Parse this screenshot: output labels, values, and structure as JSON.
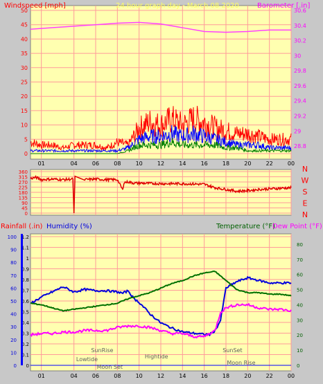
{
  "title": "24 hour graph day - March 08 2020",
  "colors": {
    "background": "#c8c8c8",
    "plot_bg": "#ffffb0",
    "grid": "#ff9a9a",
    "wind": "#ff0000",
    "gust_mid": "#0000ff",
    "wind_low": "#008000",
    "barometer": "#ff40ff",
    "direction": "#e00000",
    "humidity": "#0000dd",
    "temperature": "#007000",
    "dewpoint": "#ff00ff",
    "rain": "#0000ff"
  },
  "x_ticks": [
    "01",
    "04",
    "06",
    "08",
    "10",
    "12",
    "14",
    "16",
    "18",
    "20",
    "22",
    "00"
  ],
  "chart_data": [
    {
      "type": "line",
      "title": "24 hour graph day - March 08 2020",
      "y_left_label": "Windspeed [mph]",
      "y_right_label": "Barometer [.in]",
      "y_left_ticks": [
        "50",
        "45",
        "40",
        "35",
        "30",
        "25",
        "20",
        "15",
        "10",
        "5",
        "0"
      ],
      "y_right_ticks": [
        "30.6",
        "30.4",
        "30.2",
        "30",
        "29.8",
        "29.6",
        "29.4",
        "29.2",
        "29",
        "28.8"
      ],
      "ylim_left": [
        0,
        50
      ],
      "ylim_right": [
        28.7,
        30.6
      ],
      "series": [
        {
          "key": "wind_gust",
          "x": [
            0,
            1,
            2,
            3,
            4,
            5,
            6,
            7,
            8,
            9,
            10,
            11,
            12,
            13,
            14,
            15,
            16,
            17,
            18,
            19,
            20,
            21,
            22,
            23,
            24
          ],
          "y": [
            4,
            3,
            3,
            2,
            3,
            3,
            3,
            2,
            4,
            3,
            9,
            11,
            10,
            12,
            10,
            12,
            11,
            9,
            8,
            7,
            7,
            6,
            5,
            5,
            5
          ]
        },
        {
          "key": "wind_avg",
          "x": [
            0,
            1,
            2,
            3,
            4,
            5,
            6,
            7,
            8,
            9,
            10,
            11,
            12,
            13,
            14,
            15,
            16,
            17,
            18,
            19,
            20,
            21,
            22,
            23,
            24
          ],
          "y": [
            1,
            1,
            1,
            1,
            1,
            1,
            1,
            1,
            1,
            2,
            5,
            6,
            6,
            7,
            6,
            7,
            6,
            5,
            4,
            3,
            3,
            3,
            2,
            2,
            2
          ]
        },
        {
          "key": "wind_low",
          "x": [
            0,
            1,
            2,
            3,
            4,
            5,
            6,
            7,
            8,
            9,
            10,
            11,
            12,
            13,
            14,
            15,
            16,
            17,
            18,
            19,
            20,
            21,
            22,
            23,
            24
          ],
          "y": [
            0,
            0,
            0,
            0,
            0,
            0,
            0,
            0,
            0,
            1,
            3,
            3,
            3,
            4,
            3,
            3,
            3,
            3,
            2,
            2,
            1,
            1,
            1,
            1,
            1
          ]
        },
        {
          "key": "barometer",
          "x": [
            0,
            2,
            4,
            6,
            8,
            10,
            12,
            14,
            16,
            18,
            20,
            22,
            24
          ],
          "y": [
            30.35,
            30.37,
            30.39,
            30.41,
            30.43,
            30.44,
            30.42,
            30.37,
            30.32,
            30.31,
            30.32,
            30.34,
            30.34
          ]
        }
      ]
    },
    {
      "type": "line",
      "y_ticks": [
        "360",
        "315",
        "270",
        "225",
        "180",
        "135",
        "90",
        "45",
        "0"
      ],
      "compass": [
        "N",
        "W",
        "S",
        "E",
        "N"
      ],
      "ylim": [
        0,
        360
      ],
      "series": [
        {
          "key": "direction",
          "x": [
            0,
            0.5,
            1,
            2,
            3,
            3.9,
            4,
            4.1,
            5,
            6,
            7,
            8,
            8.5,
            8.6,
            9,
            9.5,
            10,
            12,
            14,
            16,
            17,
            18,
            19,
            20,
            21,
            22,
            23,
            24
          ],
          "y": [
            300,
            310,
            290,
            295,
            290,
            295,
            0,
            320,
            290,
            295,
            290,
            290,
            200,
            265,
            270,
            260,
            260,
            255,
            255,
            250,
            220,
            205,
            190,
            195,
            205,
            210,
            215,
            220
          ]
        }
      ]
    },
    {
      "type": "line",
      "y_left_label_1": "Rainfall (.in)",
      "y_left_label_2": "Humidity (%)",
      "y_right_label_1": "Temperature (°F)",
      "y_right_label_2": "Dew Point (°F)",
      "rain_ticks": [
        "1.2",
        "1.1",
        "1",
        "0.9",
        "0.8",
        "0.7",
        "0.6",
        "0.5",
        "0.4",
        "0.3",
        "0.2",
        "0.1",
        "0"
      ],
      "humidity_ticks": [
        "100",
        "90",
        "80",
        "70",
        "60",
        "50",
        "40",
        "30",
        "20",
        "10",
        "0"
      ],
      "temp_ticks": [
        "80",
        "70",
        "60",
        "50",
        "40",
        "30",
        "20",
        "10",
        "0"
      ],
      "ylim_humidity": [
        0,
        100
      ],
      "ylim_temp": [
        0,
        85
      ],
      "rain_values": [
        0,
        0
      ],
      "events": [
        {
          "label": "SunRise",
          "hour": 6.6
        },
        {
          "label": "Lowtide",
          "hour": 5.2
        },
        {
          "label": "Moon Set",
          "hour": 7.3
        },
        {
          "label": "Hightide",
          "hour": 11.6
        },
        {
          "label": "SunSet",
          "hour": 18.6
        },
        {
          "label": "Moon Rise",
          "hour": 19.4
        }
      ],
      "series": [
        {
          "key": "humidity",
          "x": [
            0,
            1,
            2,
            3,
            4,
            5,
            6,
            7,
            8,
            8.5,
            9,
            9.5,
            10,
            11,
            12,
            13,
            14,
            15,
            16,
            16.5,
            17,
            17.5,
            18,
            19,
            20,
            21,
            22,
            23,
            24
          ],
          "y": [
            48,
            53,
            57,
            61,
            57,
            59,
            58,
            58,
            57,
            56,
            58,
            52,
            49,
            40,
            33,
            29,
            26,
            25,
            24,
            24,
            27,
            35,
            60,
            65,
            68,
            66,
            64,
            64,
            64
          ]
        },
        {
          "key": "temperature",
          "x": [
            0,
            1,
            2,
            3,
            4,
            5,
            6,
            7,
            8,
            9,
            10,
            11,
            12,
            13,
            14,
            15,
            16,
            17,
            18,
            19,
            20,
            21,
            22,
            23,
            24
          ],
          "y": [
            41,
            40,
            38,
            36,
            37,
            38,
            39,
            40,
            41,
            44,
            46,
            48,
            51,
            54,
            56,
            59,
            61,
            62,
            56,
            50,
            48,
            48,
            47,
            47,
            46
          ]
        },
        {
          "key": "dewpoint",
          "x": [
            0,
            1,
            2,
            3,
            4,
            5,
            6,
            7,
            8,
            9,
            10,
            11,
            12,
            13,
            14,
            15,
            16,
            17,
            17.5,
            18,
            19,
            20,
            21,
            22,
            23,
            24
          ],
          "y": [
            20,
            21,
            21,
            22,
            22,
            23,
            23,
            23,
            25,
            26,
            26,
            25,
            23,
            21,
            21,
            19,
            19,
            23,
            35,
            38,
            40,
            40,
            38,
            37,
            37,
            36
          ]
        }
      ]
    }
  ]
}
